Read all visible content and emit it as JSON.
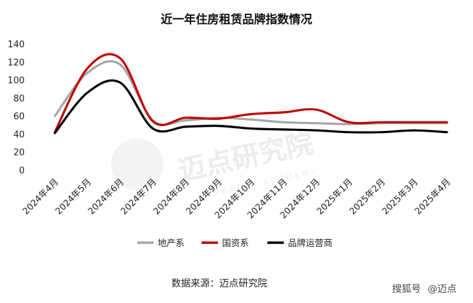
{
  "chart_data": {
    "type": "line",
    "title": "近一年住房租赁品牌指数情况",
    "categories": [
      "2024年4月",
      "2024年5月",
      "2024年6月",
      "2024年7月",
      "2024年8月",
      "2024年9月",
      "2024年10月",
      "2024年11月",
      "2024年12月",
      "2025年1月",
      "2025年2月",
      "2025年3月",
      "2025年4月"
    ],
    "series": [
      {
        "name": "地产系",
        "color": "#a6a6a6",
        "values": [
          60,
          108,
          117,
          55,
          55,
          58,
          56,
          53,
          52,
          51,
          52,
          52,
          52
        ]
      },
      {
        "name": "国资系",
        "color": "#c00000",
        "values": [
          42,
          113,
          124,
          54,
          58,
          57,
          62,
          64,
          67,
          53,
          53,
          53,
          53
        ]
      },
      {
        "name": "品牌运营商",
        "color": "#000000",
        "values": [
          41,
          86,
          97,
          46,
          48,
          49,
          46,
          45,
          44,
          42,
          42,
          44,
          42
        ]
      }
    ],
    "ylim": [
      0,
      140
    ],
    "yticks": [
      0,
      20,
      40,
      60,
      80,
      100,
      120,
      140
    ],
    "grid": false,
    "legend": "bottom"
  },
  "source_label": "数据来源：迈点研究院",
  "watermark": {
    "brand": "迈点研究院",
    "sub": "MEADIN ACADEMY"
  },
  "corner_mark": {
    "platform": "搜狐号",
    "handle": "@迈点"
  }
}
